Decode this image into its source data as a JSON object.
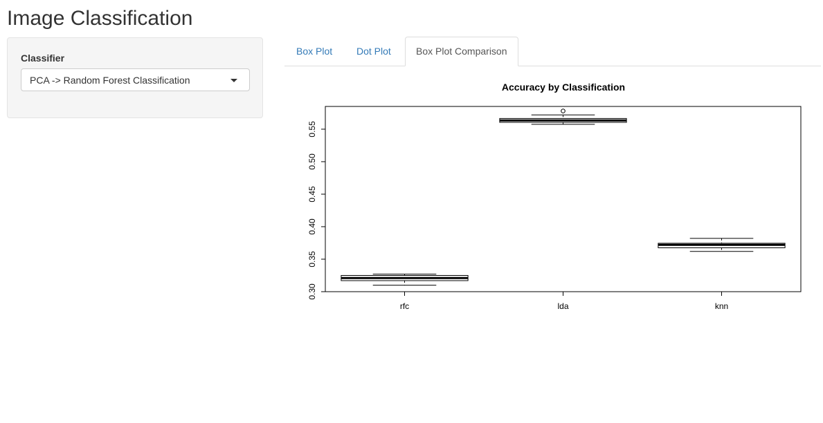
{
  "app": {
    "title": "Image Classification"
  },
  "sidebar": {
    "classifier_label": "Classifier",
    "classifier_value": "PCA -> Random Forest Classification"
  },
  "tabs": [
    {
      "label": "Box Plot",
      "active": false
    },
    {
      "label": "Dot Plot",
      "active": false
    },
    {
      "label": "Box Plot Comparison",
      "active": true
    }
  ],
  "chart_data": {
    "type": "box",
    "title": "Accuracy by Classification",
    "xlabel": "",
    "ylabel": "",
    "categories": [
      "rfc",
      "lda",
      "knn"
    ],
    "ylim": [
      0.3,
      0.585
    ],
    "yticks": [
      "0.30",
      "0.35",
      "0.40",
      "0.45",
      "0.50",
      "0.55"
    ],
    "boxes": [
      {
        "name": "rfc",
        "min": 0.31,
        "q1": 0.317,
        "median": 0.321,
        "q3": 0.325,
        "max": 0.327,
        "outliers": []
      },
      {
        "name": "lda",
        "min": 0.5575,
        "q1": 0.5605,
        "median": 0.5635,
        "q3": 0.5665,
        "max": 0.572,
        "outliers": [
          0.578
        ]
      },
      {
        "name": "knn",
        "min": 0.362,
        "q1": 0.3675,
        "median": 0.372,
        "q3": 0.3745,
        "max": 0.382,
        "outliers": []
      }
    ]
  }
}
